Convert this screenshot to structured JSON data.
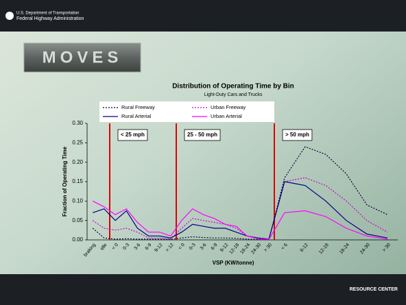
{
  "header": {
    "agency_line1": "U.S. Department of Transportation",
    "agency_line2": "Federal Highway Administration",
    "logo": "MOVES"
  },
  "footer": {
    "logo": "RESOURCE CENTER"
  },
  "chart_data": {
    "type": "line",
    "title": "Distribution of Operating Time by Bin",
    "subtitle": "Light-Duty Cars and Trucks",
    "x_label": "VSP (KW/tonne)",
    "y_label": "Fraction of Operating Time",
    "annotations": [
      "< 25 mph",
      "25 - 50 mph",
      "> 50 mph"
    ],
    "categories": [
      "braking",
      "idle",
      "< 0",
      "0-3",
      "3-6",
      "6-9",
      "9-12",
      "> 12",
      "< 0",
      "0-3",
      "3-6",
      "6-9",
      "9-12",
      "12-18",
      "18-24",
      "24-30",
      "> 30",
      "< 6",
      "6-12",
      "12-18",
      "18-24",
      "24-30",
      "> 30"
    ],
    "series": [
      {
        "name": "Rural Freeway",
        "color": "#000033",
        "style": "dotted",
        "values": [
          0.03,
          0.005,
          0.002,
          0.003,
          0.002,
          0.002,
          0.002,
          0.001,
          0.005,
          0.008,
          0.006,
          0.005,
          0.005,
          0.004,
          0.002,
          0.001,
          0.001,
          0.16,
          0.24,
          0.22,
          0.17,
          0.09,
          0.065
        ]
      },
      {
        "name": "Urban Freeway",
        "color": "#cc00cc",
        "style": "dotted",
        "values": [
          0.05,
          0.03,
          0.025,
          0.03,
          0.02,
          0.005,
          0.005,
          0.002,
          0.03,
          0.055,
          0.05,
          0.045,
          0.04,
          0.03,
          0.01,
          0.005,
          0.002,
          0.15,
          0.16,
          0.14,
          0.1,
          0.05,
          0.02
        ]
      },
      {
        "name": "Rural Arterial",
        "color": "#000080",
        "style": "solid",
        "values": [
          0.07,
          0.08,
          0.05,
          0.075,
          0.03,
          0.01,
          0.01,
          0.005,
          0.02,
          0.04,
          0.035,
          0.03,
          0.03,
          0.02,
          0.01,
          0.005,
          0.002,
          0.15,
          0.14,
          0.1,
          0.05,
          0.015,
          0.005
        ]
      },
      {
        "name": "Urban Arterial",
        "color": "#ff00ff",
        "style": "solid",
        "values": [
          0.1,
          0.085,
          0.065,
          0.08,
          0.045,
          0.02,
          0.02,
          0.01,
          0.05,
          0.08,
          0.065,
          0.055,
          0.04,
          0.035,
          0.01,
          0.003,
          0.001,
          0.07,
          0.075,
          0.06,
          0.03,
          0.01,
          0.002
        ]
      }
    ],
    "ylim": [
      0,
      0.3
    ],
    "yticks": [
      {
        "value": 0,
        "label": "0.00"
      },
      {
        "value": 0.05,
        "label": "0.05"
      },
      {
        "value": 0.1,
        "label": "0.10"
      },
      {
        "value": 0.15,
        "label": "0.15"
      },
      {
        "value": 0.2,
        "label": "0.20"
      },
      {
        "value": 0.25,
        "label": "0.25"
      },
      {
        "value": 0.3,
        "label": "0.30"
      }
    ],
    "divider_color": "#dd0000"
  }
}
